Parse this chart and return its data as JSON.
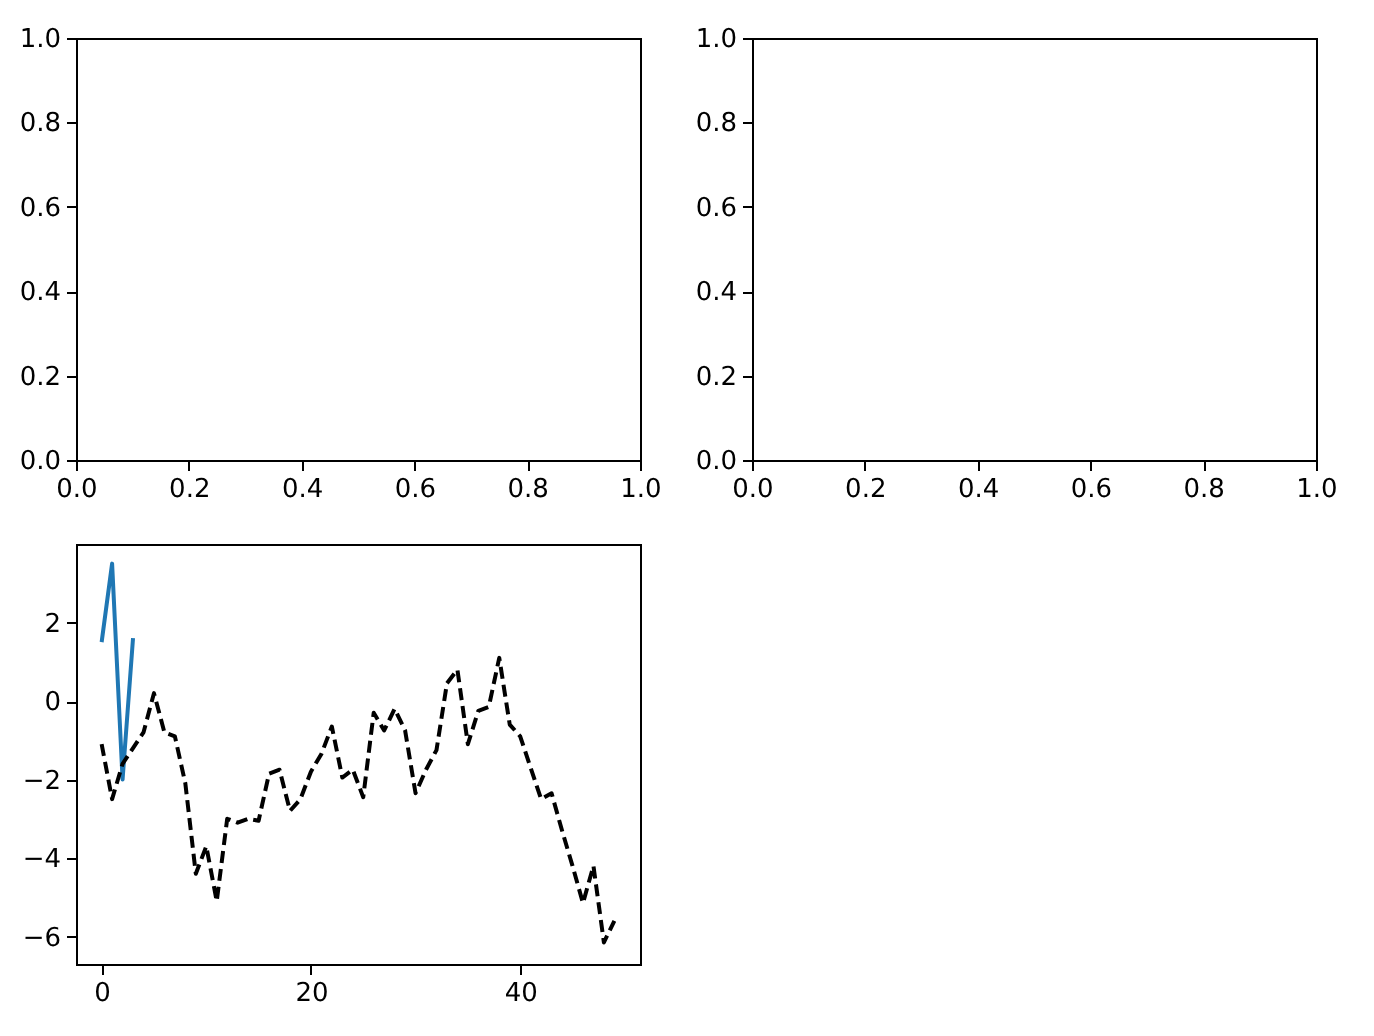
{
  "chart_data": [
    {
      "type": "line",
      "xlim": [
        0,
        1
      ],
      "ylim": [
        0,
        1
      ],
      "xticks": [
        {
          "value": 0,
          "label": "0.0"
        },
        {
          "value": 0.2,
          "label": "0.2"
        },
        {
          "value": 0.4,
          "label": "0.4"
        },
        {
          "value": 0.6,
          "label": "0.6"
        },
        {
          "value": 0.8,
          "label": "0.8"
        },
        {
          "value": 1,
          "label": "1.0"
        }
      ],
      "yticks": [
        {
          "value": 0,
          "label": "0.0"
        },
        {
          "value": 0.2,
          "label": "0.2"
        },
        {
          "value": 0.4,
          "label": "0.4"
        },
        {
          "value": 0.6,
          "label": "0.6"
        },
        {
          "value": 0.8,
          "label": "0.8"
        },
        {
          "value": 1,
          "label": "1.0"
        }
      ]
    },
    {
      "type": "line",
      "xlim": [
        0,
        1
      ],
      "ylim": [
        0,
        1
      ],
      "xticks": [
        {
          "value": 0,
          "label": "0.0"
        },
        {
          "value": 0.2,
          "label": "0.2"
        },
        {
          "value": 0.4,
          "label": "0.4"
        },
        {
          "value": 0.6,
          "label": "0.6"
        },
        {
          "value": 0.8,
          "label": "0.8"
        },
        {
          "value": 1,
          "label": "1.0"
        }
      ],
      "yticks": [
        {
          "value": 0,
          "label": "0.0"
        },
        {
          "value": 0.2,
          "label": "0.2"
        },
        {
          "value": 0.4,
          "label": "0.4"
        },
        {
          "value": 0.6,
          "label": "0.6"
        },
        {
          "value": 0.8,
          "label": "0.8"
        },
        {
          "value": 1,
          "label": "1.0"
        }
      ]
    },
    {
      "type": "line",
      "xlim": [
        -2.45,
        51.45
      ],
      "ylim": [
        -6.7,
        4.0
      ],
      "xticks": [
        0,
        20,
        40
      ],
      "yticks": [
        -6,
        -4,
        -2,
        0,
        2
      ],
      "series": [
        {
          "color": "#1f77b4",
          "line_style": "solid",
          "x": [
            0,
            1,
            2,
            3
          ],
          "values": [
            1.5,
            3.5,
            -2.0,
            1.6
          ]
        },
        {
          "color": "#000000",
          "line_style": "dashed",
          "x": [
            0,
            1,
            2,
            3,
            4,
            5,
            6,
            7,
            8,
            9,
            10,
            11,
            12,
            13,
            14,
            15,
            16,
            17,
            18,
            19,
            20,
            21,
            22,
            23,
            24,
            25,
            26,
            27,
            28,
            29,
            30,
            31,
            32,
            33,
            34,
            35,
            36,
            37,
            38,
            39,
            40,
            41,
            42,
            43,
            44,
            45,
            46,
            47,
            48,
            49
          ],
          "values": [
            -1.1,
            -2.5,
            -1.6,
            -1.2,
            -0.8,
            0.2,
            -0.8,
            -0.9,
            -2.1,
            -4.4,
            -3.7,
            -5.1,
            -3.0,
            -3.1,
            -3.0,
            -3.05,
            -1.85,
            -1.75,
            -2.8,
            -2.5,
            -1.8,
            -1.35,
            -0.65,
            -1.95,
            -1.75,
            -2.45,
            -0.3,
            -0.75,
            -0.2,
            -0.75,
            -2.35,
            -1.75,
            -1.25,
            0.45,
            0.8,
            -1.1,
            -0.25,
            -0.15,
            1.1,
            -0.6,
            -0.9,
            -1.7,
            -2.5,
            -2.35,
            -3.3,
            -4.2,
            -5.15,
            -4.2,
            -6.15,
            -5.6
          ]
        }
      ]
    }
  ]
}
